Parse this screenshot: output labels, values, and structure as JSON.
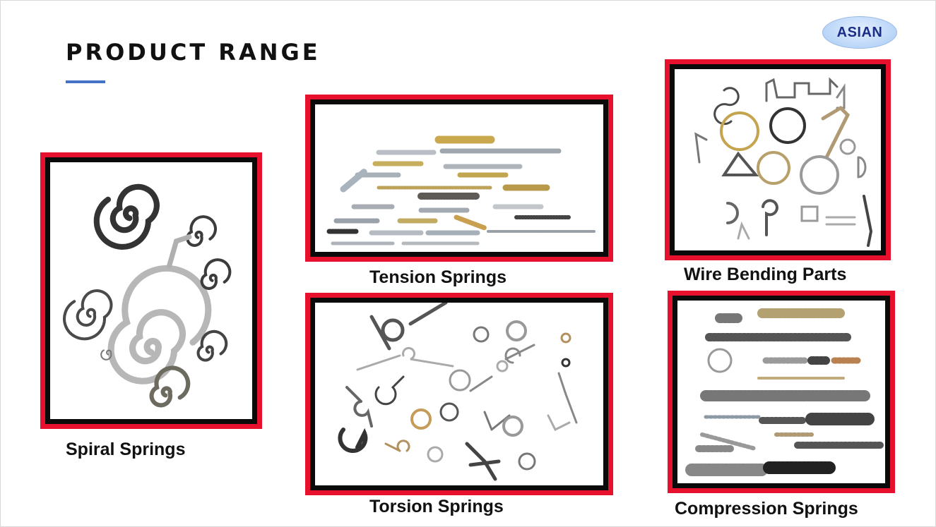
{
  "slide": {
    "title": "PRODUCT RANGE",
    "logo_text": "ASIAN",
    "accent_color": "#4472c4",
    "frame_color": "#e8112d"
  },
  "products": {
    "spiral": {
      "label": "Spiral Springs"
    },
    "tension": {
      "label": "Tension Springs"
    },
    "wire": {
      "label": "Wire Bending Parts"
    },
    "torsion": {
      "label": "Torsion Springs"
    },
    "compression": {
      "label": "Compression Springs"
    }
  }
}
